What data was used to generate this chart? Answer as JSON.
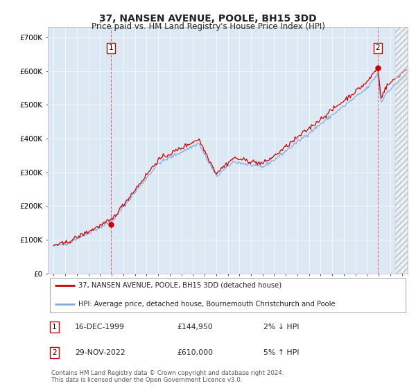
{
  "title": "37, NANSEN AVENUE, POOLE, BH15 3DD",
  "subtitle": "Price paid vs. HM Land Registry's House Price Index (HPI)",
  "title_fontsize": 10,
  "subtitle_fontsize": 8.5,
  "plot_bg_color": "#dce9f5",
  "outer_bg_color": "#ffffff",
  "red_line_color": "#cc0000",
  "blue_line_color": "#88aadd",
  "purchase1_date_num": 1999.96,
  "purchase1_price": 144950,
  "purchase1_date_str": "16-DEC-1999",
  "purchase1_hpi_rel": "2% ↓ HPI",
  "purchase2_date_num": 2022.91,
  "purchase2_price": 610000,
  "purchase2_date_str": "29-NOV-2022",
  "purchase2_hpi_rel": "5% ↑ HPI",
  "legend_line1": "37, NANSEN AVENUE, POOLE, BH15 3DD (detached house)",
  "legend_line2": "HPI: Average price, detached house, Bournemouth Christchurch and Poole",
  "footer": "Contains HM Land Registry data © Crown copyright and database right 2024.\nThis data is licensed under the Open Government Licence v3.0.",
  "ylim": [
    0,
    730000
  ],
  "xlim_start": 1994.5,
  "xlim_end": 2025.5,
  "yticks": [
    0,
    100000,
    200000,
    300000,
    400000,
    500000,
    600000,
    700000
  ],
  "ytick_labels": [
    "£0",
    "£100K",
    "£200K",
    "£300K",
    "£400K",
    "£500K",
    "£600K",
    "£700K"
  ],
  "xticks": [
    1995,
    1996,
    1997,
    1998,
    1999,
    2000,
    2001,
    2002,
    2003,
    2004,
    2005,
    2006,
    2007,
    2008,
    2009,
    2010,
    2011,
    2012,
    2013,
    2014,
    2015,
    2016,
    2017,
    2018,
    2019,
    2020,
    2021,
    2022,
    2023,
    2024,
    2025
  ],
  "hatch_start": 2024.42,
  "hatch_end": 2025.5
}
